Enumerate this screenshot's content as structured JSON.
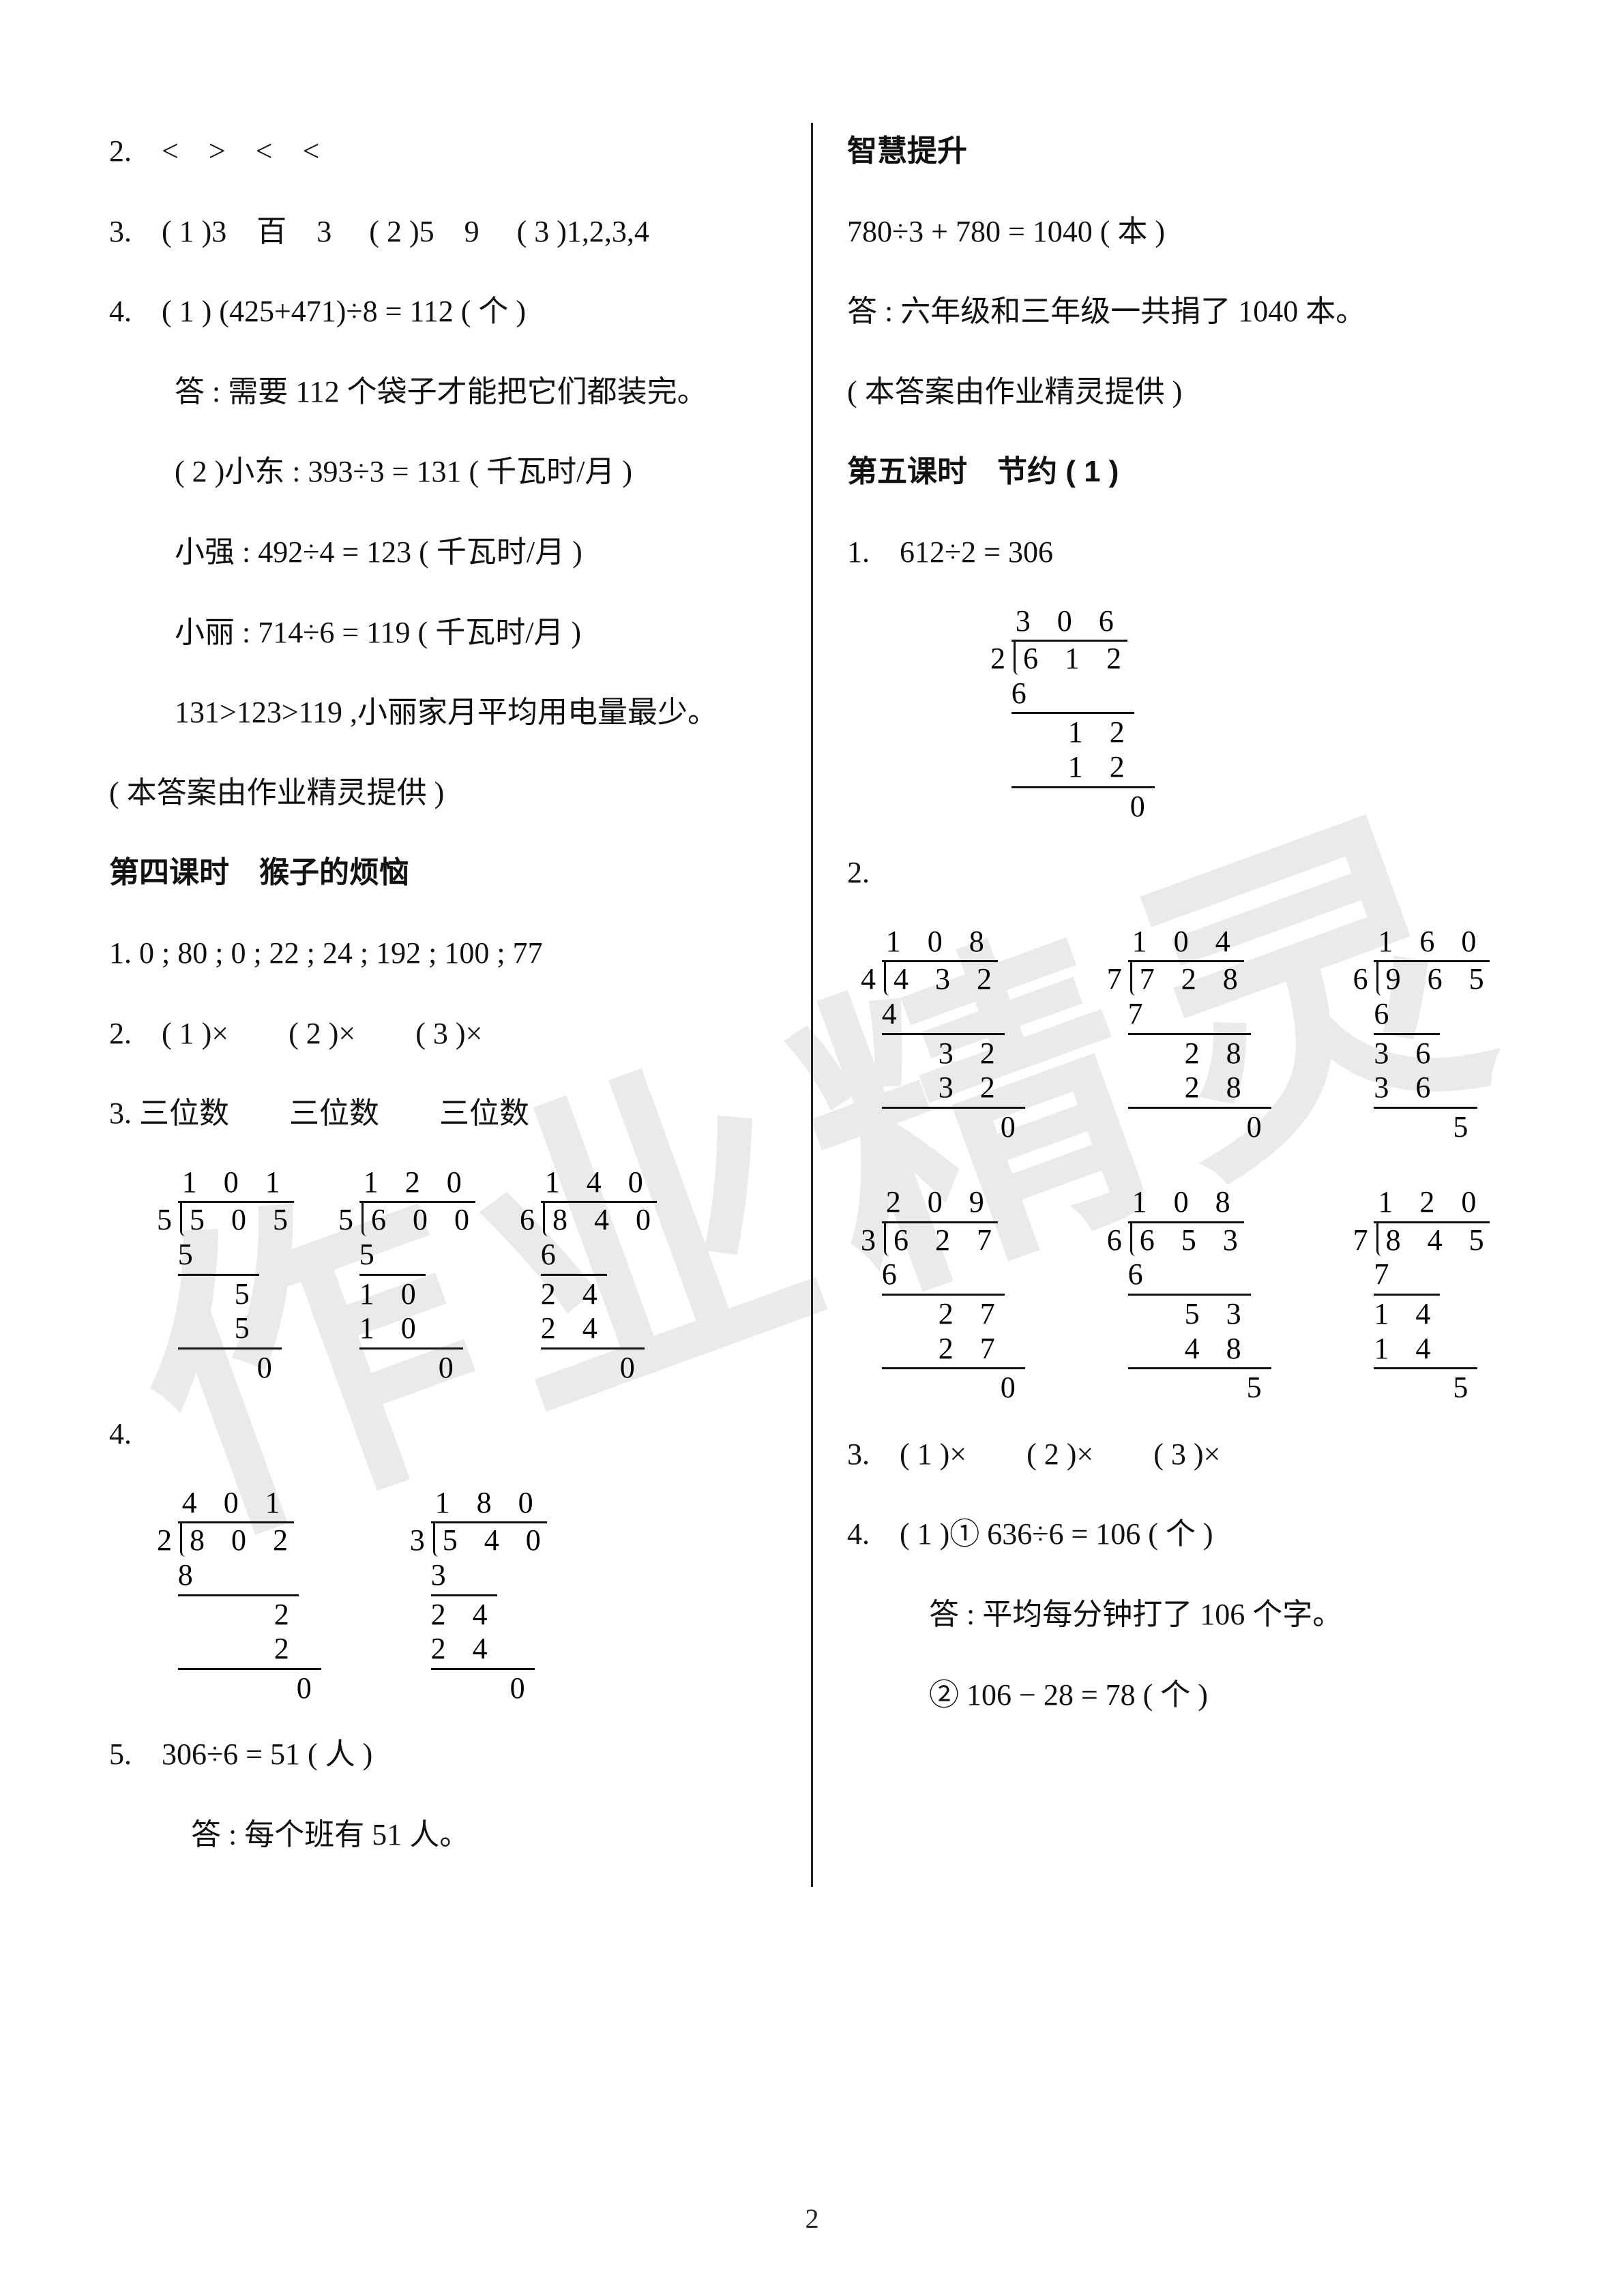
{
  "watermark_text": "作业精灵",
  "page_number": "2",
  "left": {
    "l2": "2.　<　>　<　<",
    "l3": "3.　( 1 )3　百　3　 ( 2 )5　9　 ( 3 )1,2,3,4",
    "l4a": "4.　( 1 )  (425+471)÷8 = 112 ( 个 )",
    "l4a_ans": "答 : 需要 112 个袋子才能把它们都装完。",
    "l4b": "( 2 )小东 : 393÷3 = 131 ( 千瓦时/月 )",
    "l4c": "小强 : 492÷4 = 123 ( 千瓦时/月 )",
    "l4d": "小丽 : 714÷6 = 119 ( 千瓦时/月 )",
    "l4e": "131>123>119 ,小丽家月平均用电量最少。",
    "credit": "( 本答案由作业精灵提供 )",
    "sec4_title": "第四课时　猴子的烦恼",
    "s4_1": "1.  0 ; 80 ; 0 ; 22 ; 24 ; 192 ; 100 ; 77",
    "s4_2": "2.　( 1 )×　　( 2 )×　　( 3 )×",
    "s4_3": "3.  三位数　　三位数　　三位数",
    "s4_4": "4.",
    "s4_5": "5.　306÷6 = 51 ( 人 )",
    "s4_5_ans": "答 : 每个班有 51 人。",
    "ld3": [
      {
        "q": "1 0 1",
        "dv": "5",
        "dd": "5 0 5",
        "steps": [
          "5",
          "　 5",
          "　 5",
          "　　0"
        ]
      },
      {
        "q": "1 2 0",
        "dv": "5",
        "dd": "6 0 0",
        "steps": [
          "5",
          "1 0",
          "1 0",
          "　　0"
        ]
      },
      {
        "q": "1 4 0",
        "dv": "6",
        "dd": "8 4 0",
        "steps": [
          "6",
          "2 4",
          "2 4",
          "　　0"
        ]
      }
    ],
    "ld4": [
      {
        "q": "4 0 1",
        "dv": "2",
        "dd": "8 0 2",
        "steps": [
          "8",
          "　　 2",
          "　　 2",
          "　　　0"
        ]
      },
      {
        "q": "1 8 0",
        "dv": "3",
        "dd": "5 4 0",
        "steps": [
          "3",
          "2 4",
          "2 4",
          "　　0"
        ]
      }
    ]
  },
  "right": {
    "up_title": "智慧提升",
    "up1": "780÷3 + 780 = 1040 ( 本 )",
    "up_ans": "答 : 六年级和三年级一共捐了 1040 本。",
    "credit": "( 本答案由作业精灵提供 )",
    "sec5_title": "第五课时　节约 ( 1 )",
    "s5_1": "1.　612÷2 = 306",
    "ld1": {
      "q": "3 0 6",
      "dv": "2",
      "dd": "6 1 2",
      "steps": [
        "6",
        "　 1 2",
        "　 1 2",
        "　　　0"
      ]
    },
    "s5_2": "2.",
    "ld2a": [
      {
        "q": "1 0 8",
        "dv": "4",
        "dd": "4 3 2",
        "steps": [
          "4",
          "　 3 2",
          "　 3 2",
          "　　　0"
        ]
      },
      {
        "q": "1 0 4",
        "dv": "7",
        "dd": "7 2 8",
        "steps": [
          "7",
          "　 2 8",
          "　 2 8",
          "　　　0"
        ]
      },
      {
        "q": "1 6 0",
        "dv": "6",
        "dd": "9 6 5",
        "steps": [
          "6",
          "3 6",
          "3 6",
          "　　5"
        ]
      }
    ],
    "ld2b": [
      {
        "q": "2 0 9",
        "dv": "3",
        "dd": "6 2 7",
        "steps": [
          "6",
          "　 2 7",
          "　 2 7",
          "　　　0"
        ]
      },
      {
        "q": "1 0 8",
        "dv": "6",
        "dd": "6 5 3",
        "steps": [
          "6",
          "　 5 3",
          "　 4 8",
          "　　　5"
        ]
      },
      {
        "q": "1 2 0",
        "dv": "7",
        "dd": "8 4 5",
        "steps": [
          "7",
          "1 4",
          "1 4",
          "　　5"
        ]
      }
    ],
    "s5_3": "3.　( 1 )×　　( 2 )×　　( 3 )×",
    "s5_4a": "4.　( 1 )① 636÷6 = 106 ( 个 )",
    "s5_4a_ans": "答 : 平均每分钟打了 106 个字。",
    "s5_4b": "② 106 − 28 = 78 ( 个 )"
  }
}
